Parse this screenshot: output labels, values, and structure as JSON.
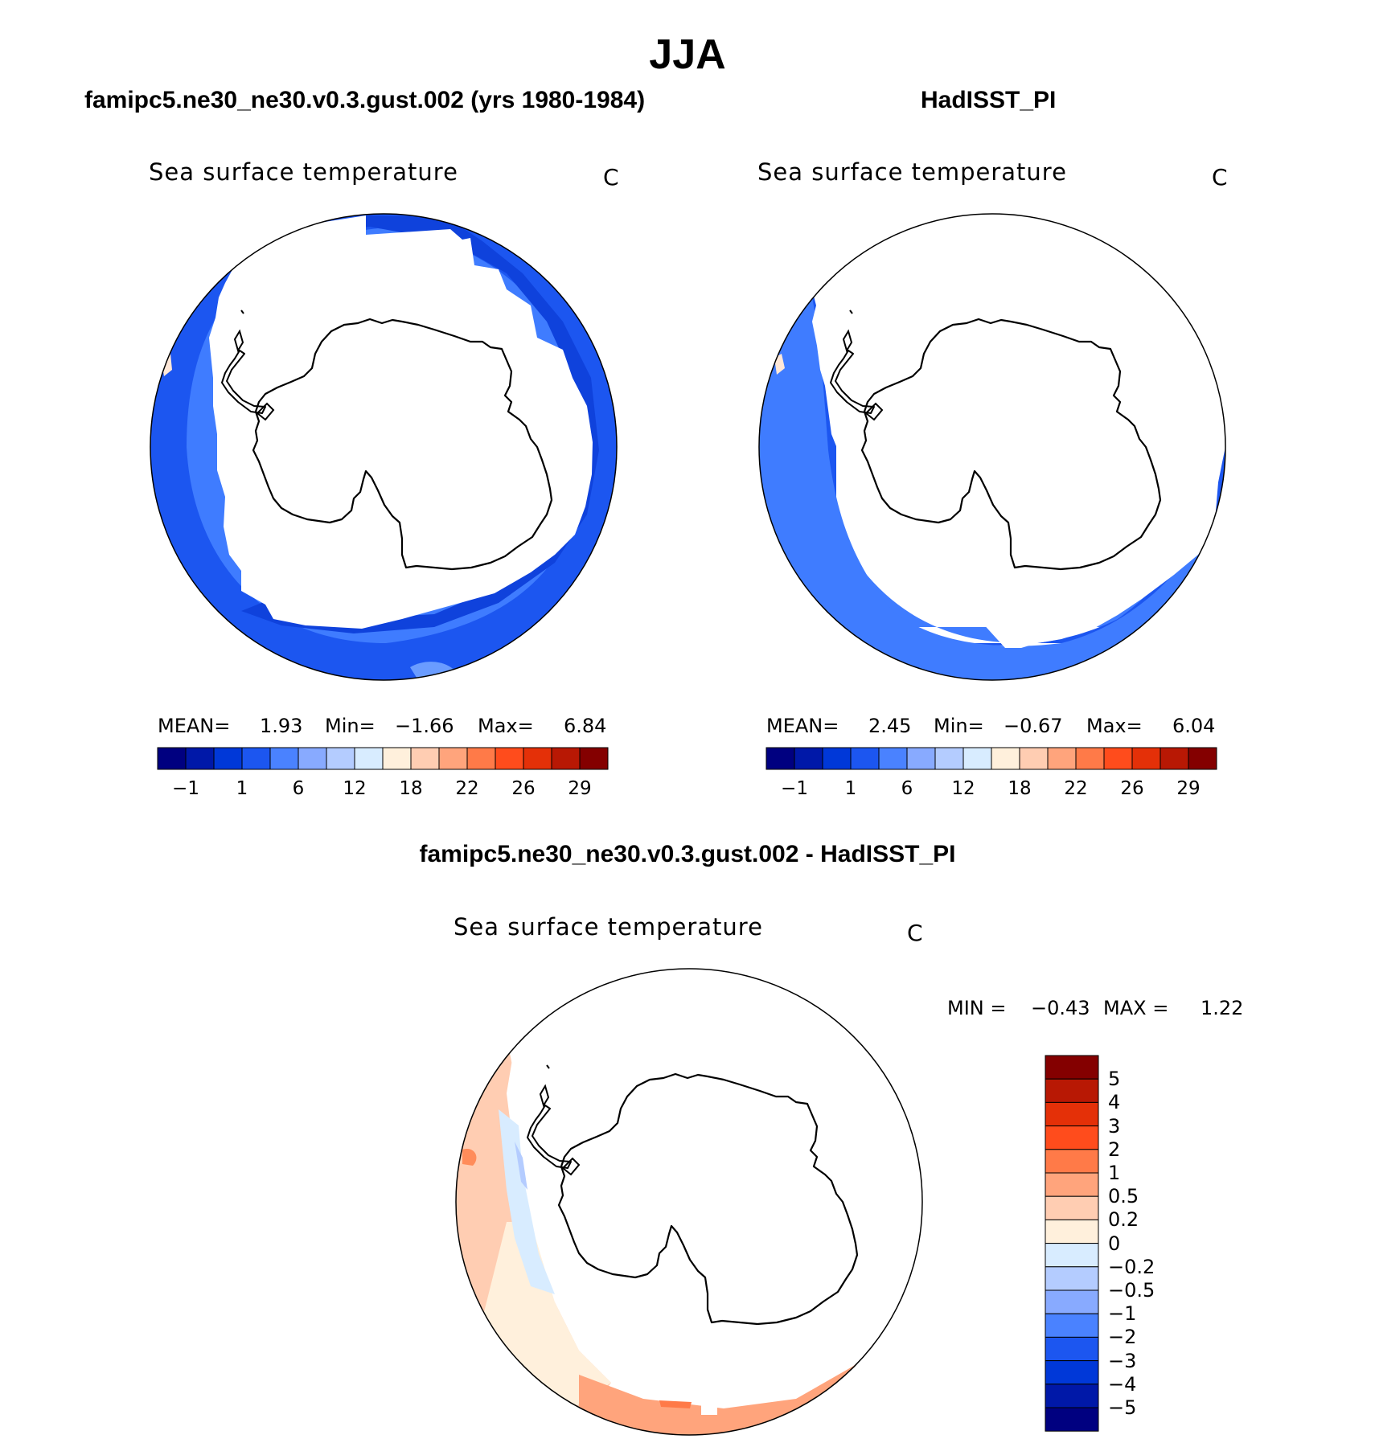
{
  "season": "JJA",
  "panels": [
    {
      "case": "famipc5.ne30_ne30.v0.3.gust.002 (yrs 1980-1984)",
      "variable": "Sea surface temperature",
      "units": "C",
      "stats": {
        "mean_label": "MEAN=",
        "mean": "1.93",
        "min_label": "Min=",
        "min": "−1.66",
        "max_label": "Max=",
        "max": "6.84"
      }
    },
    {
      "case": "HadISST_PI",
      "variable": "Sea surface temperature",
      "units": "C",
      "stats": {
        "mean_label": "MEAN=",
        "mean": "2.45",
        "min_label": "Min=",
        "min": "−0.67",
        "max_label": "Max=",
        "max": "6.04"
      }
    },
    {
      "case": "famipc5.ne30_ne30.v0.3.gust.002 - HadISST_PI",
      "variable": "Sea surface temperature",
      "units": "C",
      "stats": {
        "min_label": "MIN =",
        "min": "−0.43",
        "max_label": "MAX =",
        "max": "1.22"
      }
    }
  ],
  "chart_data": [
    {
      "type": "heatmap",
      "title": "Sea surface temperature",
      "projection": "south polar stereographic",
      "colorbar_ticks": [
        "−1",
        "1",
        "6",
        "12",
        "18",
        "22",
        "26",
        "29"
      ],
      "colorbar_colors": [
        "#000080",
        "#0018a8",
        "#0038d8",
        "#1c56f0",
        "#4a82ff",
        "#88aaff",
        "#b4ccff",
        "#d8ecff",
        "#fff0dc",
        "#ffcdb2",
        "#ffa47c",
        "#ff7a48",
        "#ff4c1c",
        "#e43008",
        "#b81804",
        "#840000"
      ],
      "mean": 1.93,
      "min": -1.66,
      "max": 6.84
    },
    {
      "type": "heatmap",
      "title": "Sea surface temperature",
      "projection": "south polar stereographic",
      "colorbar_ticks": [
        "−1",
        "1",
        "6",
        "12",
        "18",
        "22",
        "26",
        "29"
      ],
      "colorbar_colors": [
        "#000080",
        "#0018a8",
        "#0038d8",
        "#1c56f0",
        "#4a82ff",
        "#88aaff",
        "#b4ccff",
        "#d8ecff",
        "#fff0dc",
        "#ffcdb2",
        "#ffa47c",
        "#ff7a48",
        "#ff4c1c",
        "#e43008",
        "#b81804",
        "#840000"
      ],
      "mean": 2.45,
      "min": -0.67,
      "max": 6.04
    },
    {
      "type": "heatmap",
      "title": "Sea surface temperature",
      "projection": "south polar stereographic",
      "colorbar_ticks": [
        "5",
        "4",
        "3",
        "2",
        "1",
        "0.5",
        "0.2",
        "0",
        "−0.2",
        "−0.5",
        "−1",
        "−2",
        "−3",
        "−4",
        "−5"
      ],
      "colorbar_colors": [
        "#840000",
        "#b81804",
        "#e43008",
        "#ff4c1c",
        "#ff7a48",
        "#ffa47c",
        "#ffcdb2",
        "#fff0dc",
        "#d8ecff",
        "#b4ccff",
        "#88aaff",
        "#4a82ff",
        "#1c56f0",
        "#0038d8",
        "#0018a8",
        "#000080"
      ],
      "min": -0.43,
      "max": 1.22
    }
  ]
}
